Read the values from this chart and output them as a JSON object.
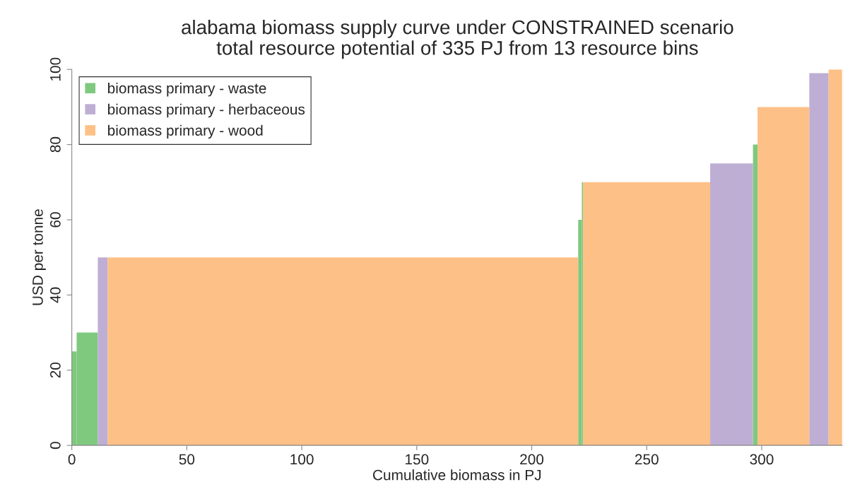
{
  "chart_data": {
    "type": "histogram",
    "title": "alabama biomass supply curve under CONSTRAINED scenario",
    "subtitle": "total resource potential of 335 PJ from 13 resource bins",
    "xlabel": "Cumulative biomass in PJ",
    "ylabel": "USD per tonne",
    "bins": [
      0,
      2.1,
      11.3,
      15.6,
      220.2,
      221.8,
      222.3,
      277.6,
      296.2,
      298.2,
      320.7,
      329.1,
      335
    ],
    "series": [
      {
        "name": "biomass primary - waste",
        "color": "#7fc97f",
        "values": [
          25,
          30,
          null,
          null,
          60,
          70,
          null,
          null,
          80,
          null,
          null,
          null
        ]
      },
      {
        "name": "biomass primary - herbaceous",
        "color": "#beaed4",
        "values": [
          null,
          null,
          50,
          null,
          null,
          null,
          null,
          75,
          null,
          null,
          99,
          null
        ]
      },
      {
        "name": "biomass primary - wood",
        "color": "#fdc086",
        "values": [
          null,
          null,
          null,
          50,
          null,
          null,
          70,
          null,
          null,
          90,
          null,
          100
        ]
      }
    ],
    "xlim": [
      0,
      335
    ],
    "xticks": [
      0,
      50,
      100,
      150,
      200,
      250,
      300
    ],
    "ylim": [
      0,
      100
    ],
    "yticks": [
      0,
      20,
      40,
      60,
      80,
      100
    ],
    "legend": "top left",
    "grid": false
  }
}
